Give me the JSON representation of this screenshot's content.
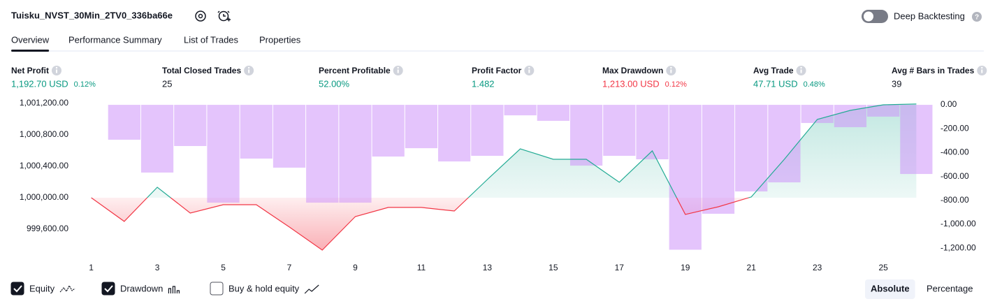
{
  "header": {
    "title": "Tuisku_NVST_30Min_2TV0_336ba66e",
    "deep_backtesting": "Deep Backtesting",
    "deep_backtesting_on": false
  },
  "tabs": {
    "items": [
      "Overview",
      "Performance Summary",
      "List of Trades",
      "Properties"
    ],
    "active": 0
  },
  "metrics": [
    {
      "label": "Net Profit",
      "value": "1,192.70 USD",
      "sub": "0.12%",
      "color": "#089981"
    },
    {
      "label": "Total Closed Trades",
      "value": "25",
      "color": "#131722"
    },
    {
      "label": "Percent Profitable",
      "value": "52.00%",
      "color": "#089981"
    },
    {
      "label": "Profit Factor",
      "value": "1.482",
      "color": "#089981"
    },
    {
      "label": "Max Drawdown",
      "value": "1,213.00 USD",
      "sub": "0.12%",
      "color": "#f23645"
    },
    {
      "label": "Avg Trade",
      "value": "47.71 USD",
      "sub": "0.48%",
      "color": "#089981"
    },
    {
      "label": "Avg # Bars in Trades",
      "value": "39",
      "color": "#131722"
    }
  ],
  "chart_data": {
    "type": "combo",
    "x": [
      1,
      2,
      3,
      4,
      5,
      6,
      7,
      8,
      9,
      10,
      11,
      12,
      13,
      14,
      15,
      16,
      17,
      18,
      19,
      20,
      21,
      22,
      23,
      24,
      25,
      26
    ],
    "xlim": [
      0.5,
      26.5
    ],
    "xticks": [
      1,
      3,
      5,
      7,
      9,
      11,
      13,
      15,
      17,
      19,
      21,
      23,
      25
    ],
    "ylim": [
      999315,
      1001200
    ],
    "yticks": [
      {
        "value": 999600,
        "label": "999,600.00"
      },
      {
        "value": 1000000,
        "label": "1,000,000.00"
      },
      {
        "value": 1000400,
        "label": "1,000,400.00"
      },
      {
        "value": 1000800,
        "label": "1,000,800.00"
      },
      {
        "value": 1001200,
        "label": "1,001,200.00"
      }
    ],
    "y2lim": [
      -1228,
      12
    ],
    "y2ticks": [
      {
        "value": 0,
        "label": "0.00"
      },
      {
        "value": -200,
        "label": "-200.00"
      },
      {
        "value": -400,
        "label": "-400.00"
      },
      {
        "value": -600,
        "label": "-600.00"
      },
      {
        "value": -800,
        "label": "-800.00"
      },
      {
        "value": -1000,
        "label": "-1,000.00"
      },
      {
        "value": -1200,
        "label": "-1,200.00"
      }
    ],
    "series": [
      {
        "name": "Equity",
        "type": "line",
        "axis": "y",
        "visible": true,
        "color": "#22ab94",
        "negative_color": "#f23645",
        "values": [
          1000000,
          999698,
          1000133,
          999804,
          999911,
          999911,
          999627,
          999333,
          999760,
          999876,
          999876,
          999831,
          1000231,
          1000622,
          1000489,
          1000489,
          1000196,
          1000596,
          999787,
          999884,
          1000009,
          1000489,
          1000996,
          1001111,
          1001182,
          1001193
        ]
      },
      {
        "name": "Drawdown",
        "type": "bar",
        "axis": "y2",
        "visible": true,
        "color": "#ce93fa",
        "values": [
          0,
          -292,
          -567,
          -345,
          -819,
          -450,
          -526,
          -819,
          -819,
          -433,
          -363,
          -474,
          -427,
          -88,
          -134,
          -509,
          -427,
          -456,
          -1213,
          -912,
          -725,
          -649,
          -152,
          -187,
          -99,
          -579
        ]
      }
    ]
  },
  "controls": {
    "buy_hold": {
      "label": "Buy & hold equity",
      "checked": false
    },
    "modes": [
      "Absolute",
      "Percentage"
    ],
    "active_mode": 0
  }
}
